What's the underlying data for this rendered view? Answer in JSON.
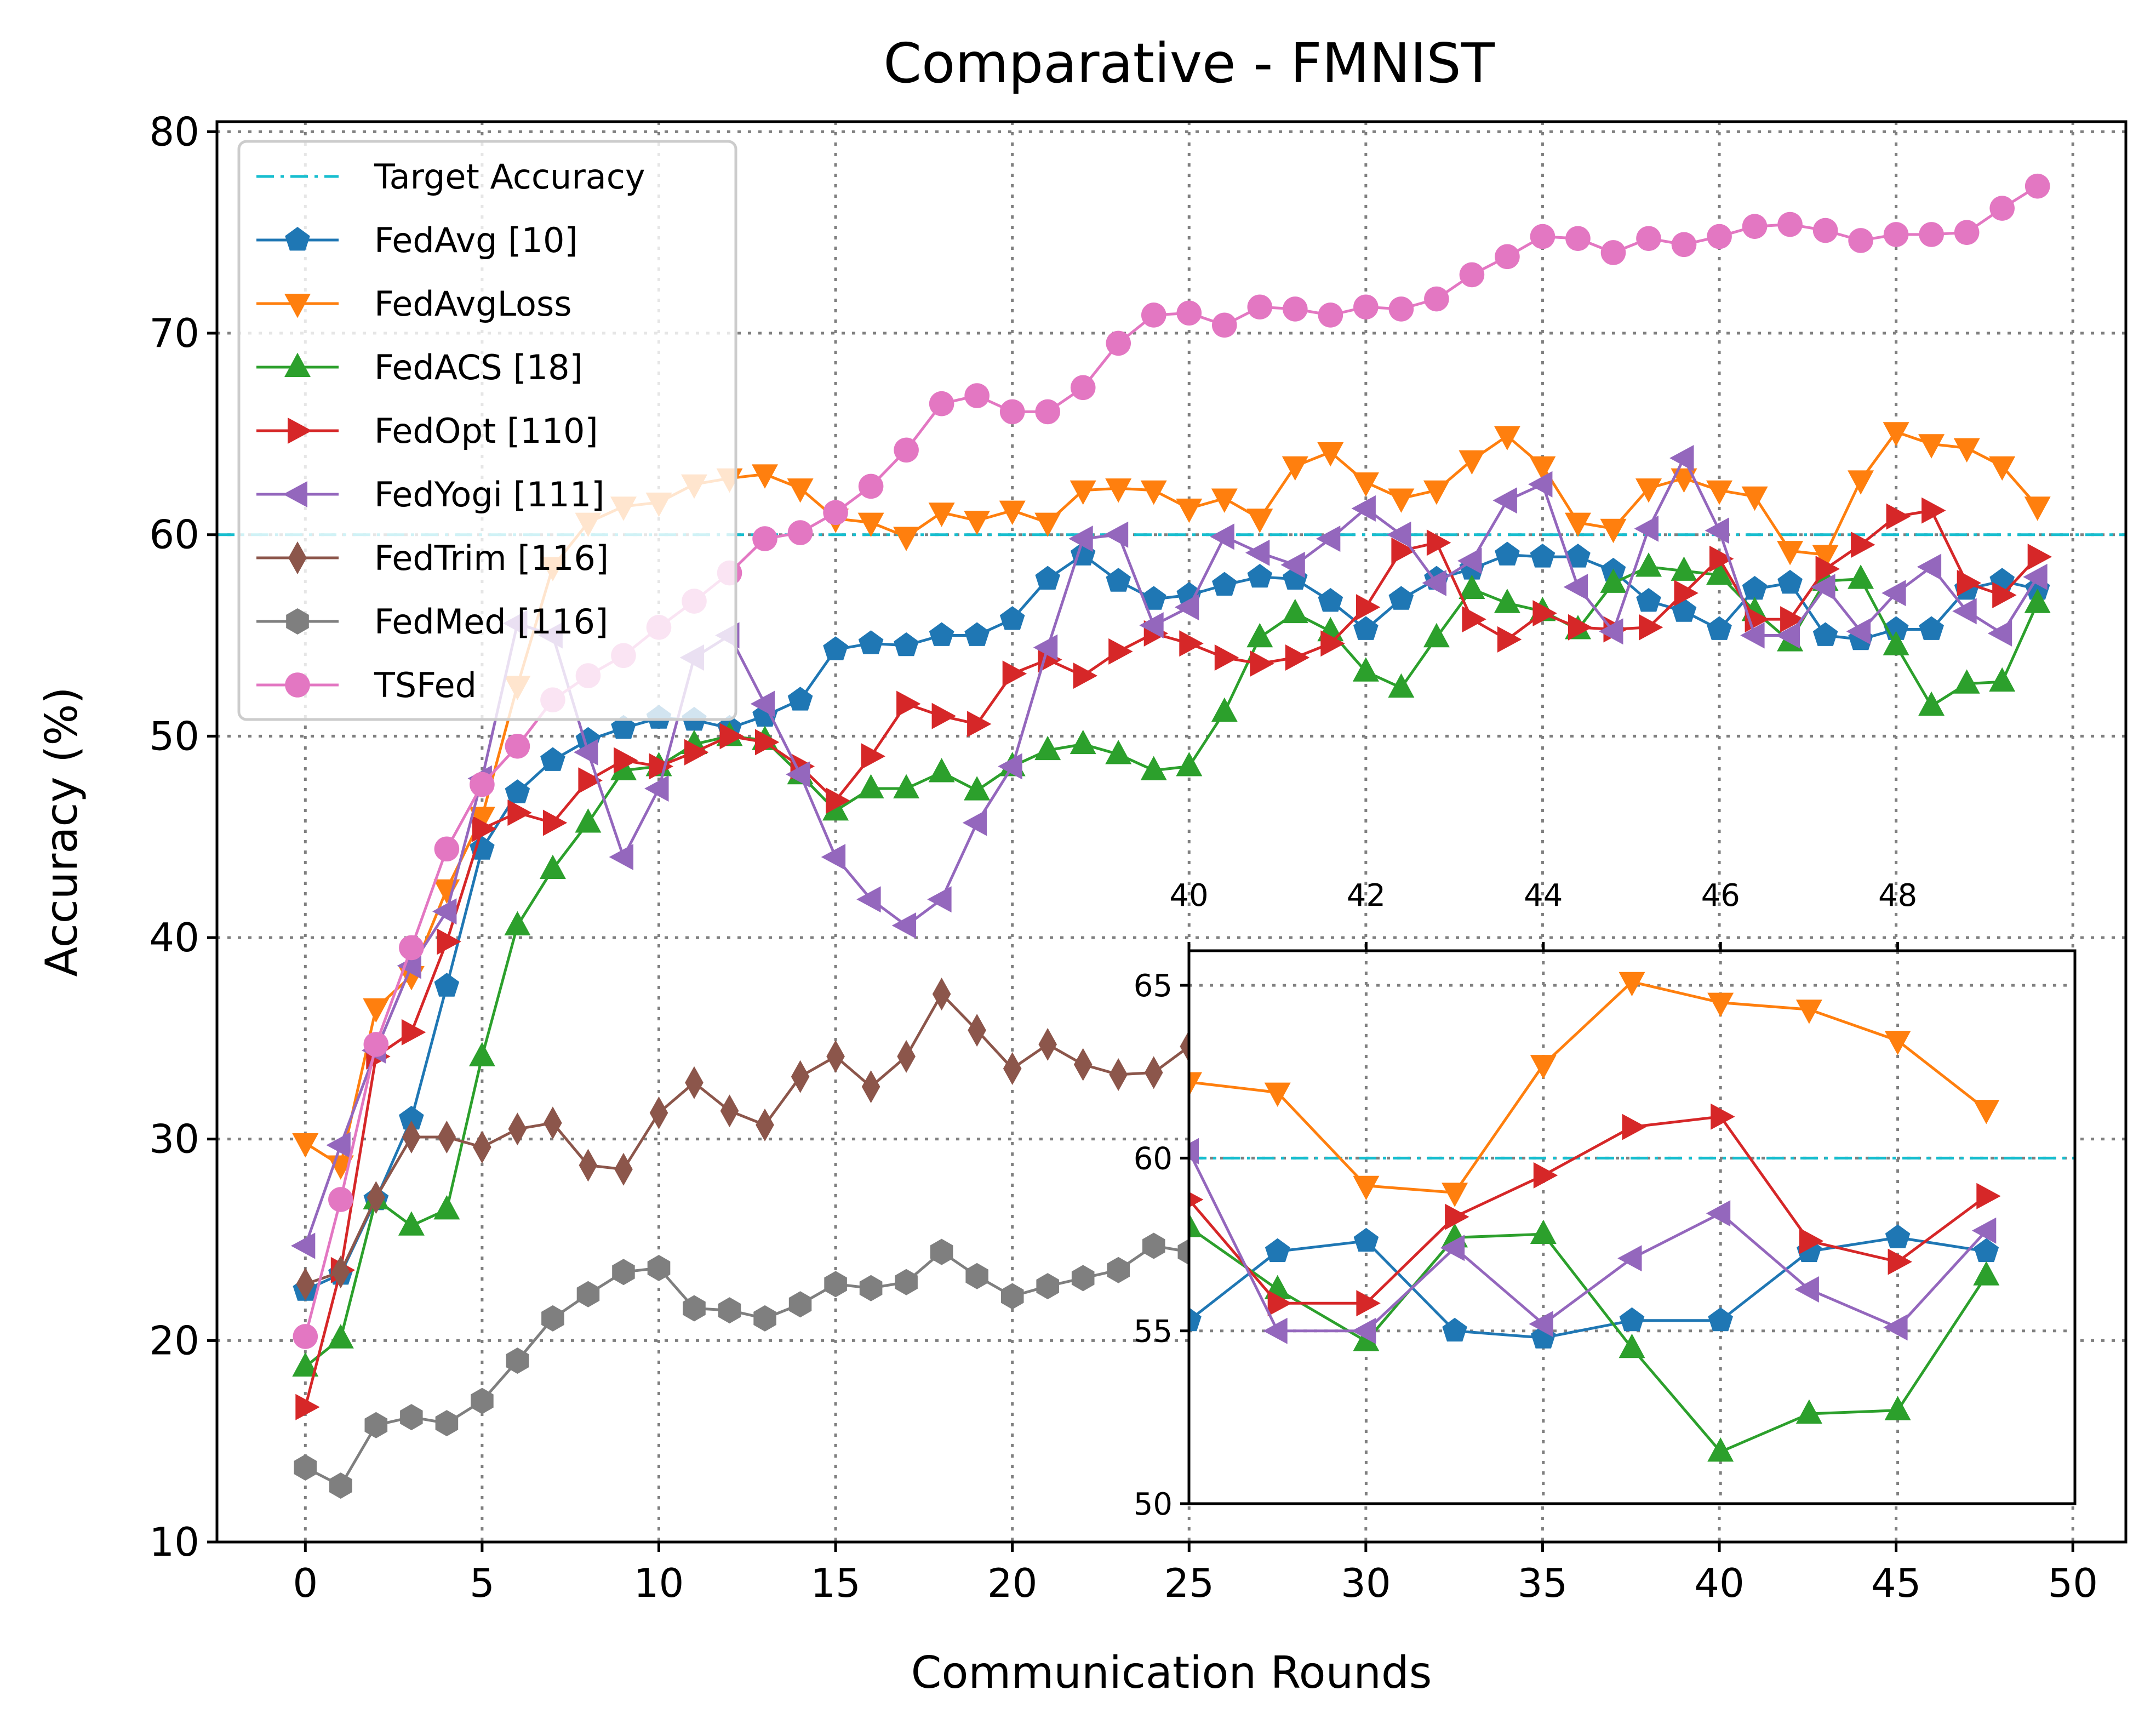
{
  "chart_data": {
    "type": "line",
    "title": "Comparative - FMNIST",
    "xlabel": "Communication Rounds",
    "ylabel": "Accuracy (%)",
    "xlim": [
      -2.5,
      51.5
    ],
    "ylim": [
      10,
      80.5
    ],
    "xticks": [
      0,
      5,
      10,
      15,
      20,
      25,
      30,
      35,
      40,
      45,
      50
    ],
    "yticks": [
      10,
      20,
      30,
      40,
      50,
      60,
      70,
      80
    ],
    "grid": true,
    "legend_position": "top-left",
    "target_accuracy": {
      "name": "Target Accuracy",
      "value": 60,
      "color": "#17becf"
    },
    "x": [
      0,
      1,
      2,
      3,
      4,
      5,
      6,
      7,
      8,
      9,
      10,
      11,
      12,
      13,
      14,
      15,
      16,
      17,
      18,
      19,
      20,
      21,
      22,
      23,
      24,
      25,
      26,
      27,
      28,
      29,
      30,
      31,
      32,
      33,
      34,
      35,
      36,
      37,
      38,
      39,
      40,
      41,
      42,
      43,
      44,
      45,
      46,
      47,
      48,
      49
    ],
    "series": [
      {
        "name": "FedAvg [10]",
        "color": "#1f77b4",
        "marker": "pentagon",
        "values": [
          22.5,
          23.3,
          27.0,
          31.0,
          37.6,
          44.4,
          47.2,
          48.8,
          49.8,
          50.4,
          50.9,
          50.8,
          50.4,
          51.0,
          51.8,
          54.3,
          54.6,
          54.5,
          55.0,
          55.0,
          55.8,
          57.8,
          59.0,
          57.7,
          56.8,
          57.0,
          57.5,
          57.9,
          57.8,
          56.7,
          55.3,
          56.8,
          57.8,
          58.3,
          59.0,
          58.9,
          58.9,
          58.2,
          56.7,
          56.2,
          55.3,
          57.3,
          57.6,
          55.0,
          54.8,
          55.3,
          55.3,
          57.3,
          57.7,
          57.3
        ]
      },
      {
        "name": "FedAvgLoss",
        "color": "#ff7f0e",
        "marker": "triangle-down",
        "values": [
          29.8,
          28.7,
          36.5,
          38.1,
          42.4,
          46.0,
          52.5,
          58.4,
          60.6,
          61.4,
          61.6,
          62.5,
          62.8,
          63.0,
          62.3,
          60.8,
          60.6,
          59.9,
          61.1,
          60.7,
          61.2,
          60.6,
          62.2,
          62.3,
          62.2,
          61.3,
          61.8,
          60.8,
          63.4,
          64.1,
          62.6,
          61.8,
          62.2,
          63.7,
          64.9,
          63.4,
          60.6,
          60.3,
          62.3,
          62.8,
          62.2,
          61.9,
          59.2,
          59.0,
          62.7,
          65.1,
          64.5,
          64.3,
          63.4,
          61.4
        ]
      },
      {
        "name": "FedACS [18]",
        "color": "#2ca02c",
        "marker": "triangle-up",
        "values": [
          18.7,
          20.1,
          27.0,
          25.7,
          26.5,
          34.1,
          40.6,
          43.4,
          45.7,
          48.3,
          48.5,
          49.6,
          50.0,
          49.8,
          48.1,
          46.3,
          47.4,
          47.4,
          48.2,
          47.3,
          48.5,
          49.3,
          49.6,
          49.1,
          48.3,
          48.5,
          51.2,
          54.9,
          56.1,
          55.2,
          53.2,
          52.4,
          54.9,
          57.3,
          56.6,
          56.2,
          55.3,
          57.6,
          58.4,
          58.2,
          58.0,
          56.2,
          54.7,
          57.7,
          57.8,
          54.5,
          51.5,
          52.6,
          52.7,
          56.6
        ]
      },
      {
        "name": "FedOpt [110]",
        "color": "#d62728",
        "marker": "triangle-right",
        "values": [
          16.7,
          23.5,
          34.1,
          35.3,
          39.8,
          45.4,
          46.2,
          45.7,
          47.8,
          48.8,
          48.5,
          49.2,
          50.0,
          49.7,
          48.5,
          46.8,
          49.0,
          51.6,
          51.0,
          50.6,
          53.1,
          53.8,
          53.0,
          54.2,
          55.1,
          54.6,
          53.9,
          53.6,
          53.9,
          54.6,
          56.4,
          59.2,
          59.6,
          55.8,
          54.8,
          56.1,
          55.4,
          55.3,
          55.4,
          57.1,
          58.8,
          55.8,
          55.8,
          58.3,
          59.5,
          60.9,
          61.2,
          57.6,
          57.0,
          58.9
        ]
      },
      {
        "name": "FedYogi [111]",
        "color": "#9467bd",
        "marker": "triangle-left",
        "values": [
          24.7,
          29.7,
          34.4,
          38.6,
          41.3,
          47.9,
          55.6,
          55.0,
          49.2,
          44.0,
          47.4,
          53.9,
          55.0,
          51.6,
          48.1,
          44.0,
          41.9,
          40.6,
          41.9,
          45.7,
          48.5,
          54.4,
          59.8,
          60.0,
          55.5,
          56.4,
          59.9,
          59.1,
          58.5,
          59.8,
          61.3,
          60.0,
          57.6,
          58.7,
          61.7,
          62.5,
          57.4,
          55.2,
          60.3,
          63.8,
          60.2,
          55.0,
          55.0,
          57.4,
          55.2,
          57.1,
          58.4,
          56.2,
          55.1,
          57.9
        ]
      },
      {
        "name": "FedTrim [116]",
        "color": "#8c564b",
        "marker": "diamond",
        "values": [
          22.8,
          23.4,
          27.1,
          30.1,
          30.1,
          29.6,
          30.5,
          30.8,
          28.7,
          28.5,
          31.3,
          32.8,
          31.4,
          30.7,
          33.1,
          34.1,
          32.6,
          34.1,
          37.2,
          35.4,
          33.5,
          34.7,
          33.7,
          33.2,
          33.3,
          34.6,
          null,
          null,
          null,
          null,
          null,
          null,
          null,
          null,
          null,
          null,
          null,
          null,
          null,
          null,
          null,
          null,
          null,
          null,
          null,
          null,
          null,
          null,
          null,
          null
        ]
      },
      {
        "name": "FedMed [116]",
        "color": "#7f7f7f",
        "marker": "hexagon",
        "values": [
          13.7,
          12.8,
          15.8,
          16.2,
          15.9,
          17.0,
          19.0,
          21.1,
          22.3,
          23.4,
          23.6,
          21.6,
          21.5,
          21.1,
          21.8,
          22.8,
          22.6,
          22.9,
          24.4,
          23.2,
          22.2,
          22.7,
          23.1,
          23.5,
          24.7,
          24.4,
          null,
          null,
          null,
          null,
          null,
          null,
          null,
          null,
          null,
          null,
          null,
          null,
          null,
          null,
          null,
          null,
          null,
          null,
          null,
          null,
          null,
          null,
          null,
          null
        ]
      },
      {
        "name": "TSFed",
        "color": "#e377c2",
        "marker": "circle",
        "values": [
          20.2,
          27.0,
          34.7,
          39.5,
          44.4,
          47.6,
          49.5,
          51.8,
          53.0,
          54.0,
          55.4,
          56.7,
          58.1,
          59.8,
          60.1,
          61.1,
          62.4,
          64.2,
          66.5,
          66.9,
          66.1,
          66.1,
          67.3,
          69.5,
          70.9,
          71.0,
          70.4,
          71.3,
          71.2,
          70.9,
          71.3,
          71.2,
          71.7,
          72.9,
          73.8,
          74.8,
          74.7,
          74.0,
          74.7,
          74.4,
          74.8,
          75.3,
          75.4,
          75.1,
          74.6,
          74.9,
          74.9,
          75.0,
          76.2,
          77.3
        ]
      }
    ],
    "inset": {
      "xlim": [
        40,
        50
      ],
      "ylim": [
        50,
        66
      ],
      "xticks": [
        40,
        42,
        44,
        46,
        48
      ],
      "yticks": [
        50,
        55,
        60,
        65
      ],
      "xticks_position": "top",
      "series_shown": [
        "FedAvg [10]",
        "FedAvgLoss",
        "FedACS [18]",
        "FedOpt [110]",
        "FedYogi [111]"
      ]
    }
  }
}
